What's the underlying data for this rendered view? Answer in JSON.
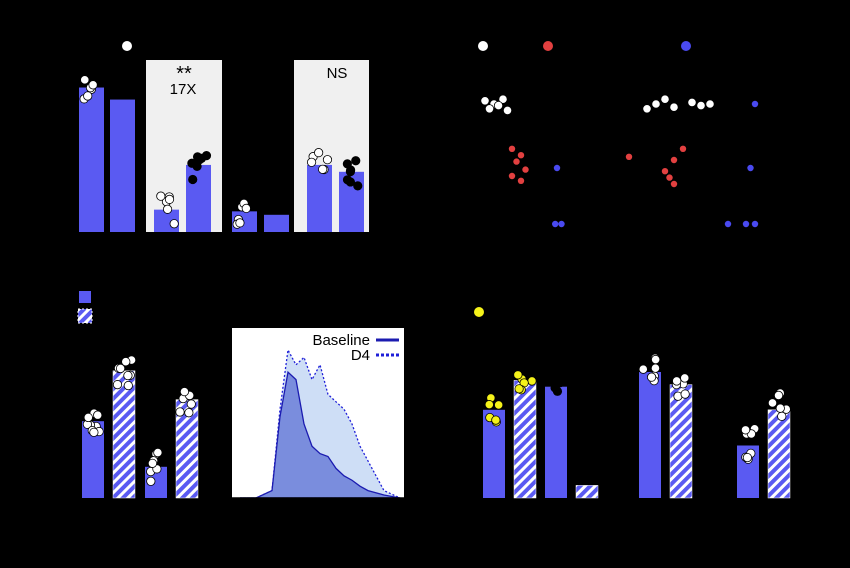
{
  "colors": {
    "bar": "#5a5af2",
    "hatch": "#ffffff",
    "shade": "#f0f0f0",
    "baseline_line": "#1b1bb0",
    "d4_line": "#1f1fd8",
    "baseline_fill": "#6b7fd8",
    "d4_fill": "#c6d8f4",
    "red": "#e24040",
    "blue_dot": "#4a4af0",
    "yellow": "#f5f21a"
  },
  "panel_a": {
    "annotations": [
      {
        "label": "**",
        "sublabel": "17X"
      },
      {
        "label": "NS"
      }
    ]
  },
  "panel_c": {
    "legend": [
      "Baseline",
      "D4"
    ]
  },
  "chart_data": [
    {
      "type": "bar",
      "panel": "top-left",
      "values": [
        8.4,
        7.7,
        1.3,
        3.9,
        1.2,
        1.0,
        3.9,
        3.5
      ],
      "ylim": [
        0,
        10
      ]
    },
    {
      "type": "scatter",
      "panel": "top-right",
      "series": [
        {
          "color": "white",
          "x": [
            0.5,
            0.6,
            0.7,
            0.55,
            0.65,
            0.75,
            2.3,
            2.4,
            2.5,
            2.6,
            2.8,
            2.9,
            3.0
          ],
          "y": [
            8.2,
            8.0,
            8.3,
            7.7,
            7.9,
            7.6,
            7.7,
            8.0,
            8.3,
            7.8,
            8.1,
            7.9,
            8.0
          ]
        },
        {
          "color": "red",
          "x": [
            0.8,
            0.9,
            0.85,
            0.95,
            0.8,
            0.9,
            2.1,
            2.7,
            2.6,
            2.5,
            2.55,
            2.6
          ],
          "y": [
            5.2,
            4.8,
            4.4,
            3.9,
            3.5,
            3.2,
            4.7,
            5.2,
            4.5,
            3.8,
            3.4,
            3.0
          ]
        },
        {
          "color": "blue",
          "x": [
            1.3,
            1.28,
            1.35,
            3.2,
            3.4,
            3.5,
            3.45,
            3.5
          ],
          "y": [
            4.0,
            0.5,
            0.5,
            0.5,
            0.5,
            0.5,
            4.0,
            8.0
          ]
        }
      ]
    },
    {
      "type": "bar",
      "panel": "bottom-left",
      "values": [
        3.2,
        5.3,
        1.3,
        4.1
      ],
      "ylim": [
        0,
        7
      ]
    },
    {
      "type": "area",
      "panel": "bottom-middle",
      "series": [
        {
          "name": "Baseline",
          "x": [
            0,
            10,
            20,
            25,
            30,
            35,
            40,
            45,
            50,
            55,
            60,
            65,
            70,
            75,
            80,
            90,
            100
          ],
          "y": [
            0,
            0,
            0.05,
            0.55,
            0.85,
            0.8,
            0.5,
            0.35,
            0.3,
            0.28,
            0.2,
            0.15,
            0.12,
            0.08,
            0.05,
            0.02,
            0
          ]
        },
        {
          "name": "D4",
          "x": [
            0,
            10,
            20,
            25,
            30,
            35,
            40,
            45,
            50,
            55,
            60,
            65,
            70,
            75,
            80,
            90,
            100
          ],
          "y": [
            0,
            0,
            0.05,
            0.6,
            1.0,
            0.9,
            0.95,
            0.8,
            0.9,
            0.7,
            0.65,
            0.6,
            0.5,
            0.35,
            0.25,
            0.05,
            0
          ]
        }
      ]
    },
    {
      "type": "bar",
      "panel": "bottom-right",
      "values": [
        4.2,
        5.6,
        5.3,
        0.6,
        6.0,
        5.4,
        2.5,
        4.2
      ],
      "ylim": [
        0,
        8
      ]
    }
  ]
}
